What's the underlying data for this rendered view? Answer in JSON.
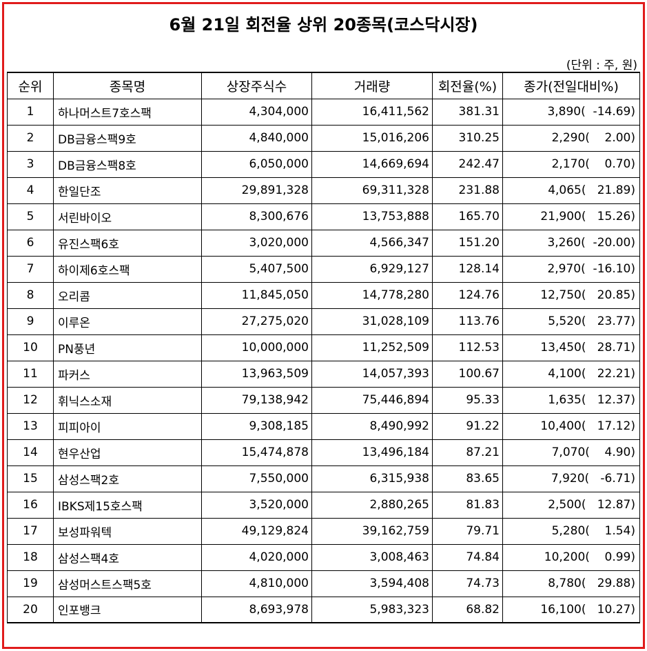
{
  "title": "6월 21일 회전율 상위 20종목(코스닥시장)",
  "unit_note": "(단위 : 주, 원)",
  "colors": {
    "frame": "#e01b1b"
  },
  "columns": [
    "순위",
    "종목명",
    "상장주식수",
    "거래량",
    "회전율(%)",
    "종가(전일대비%)"
  ],
  "rows": [
    {
      "rank": "1",
      "name": "하나머스트7호스팩",
      "listed": "4,304,000",
      "volume": "16,411,562",
      "turnover": "381.31",
      "close": "3,890(  -14.69)"
    },
    {
      "rank": "2",
      "name": "DB금융스팩9호",
      "listed": "4,840,000",
      "volume": "15,016,206",
      "turnover": "310.25",
      "close": "2,290(    2.00)"
    },
    {
      "rank": "3",
      "name": "DB금융스팩8호",
      "listed": "6,050,000",
      "volume": "14,669,694",
      "turnover": "242.47",
      "close": "2,170(    0.70)"
    },
    {
      "rank": "4",
      "name": "한일단조",
      "listed": "29,891,328",
      "volume": "69,311,328",
      "turnover": "231.88",
      "close": "4,065(   21.89)"
    },
    {
      "rank": "5",
      "name": "서린바이오",
      "listed": "8,300,676",
      "volume": "13,753,888",
      "turnover": "165.70",
      "close": "21,900(   15.26)"
    },
    {
      "rank": "6",
      "name": "유진스팩6호",
      "listed": "3,020,000",
      "volume": "4,566,347",
      "turnover": "151.20",
      "close": "3,260(  -20.00)"
    },
    {
      "rank": "7",
      "name": "하이제6호스팩",
      "listed": "5,407,500",
      "volume": "6,929,127",
      "turnover": "128.14",
      "close": "2,970(  -16.10)"
    },
    {
      "rank": "8",
      "name": "오리콤",
      "listed": "11,845,050",
      "volume": "14,778,280",
      "turnover": "124.76",
      "close": "12,750(   20.85)"
    },
    {
      "rank": "9",
      "name": "이루온",
      "listed": "27,275,020",
      "volume": "31,028,109",
      "turnover": "113.76",
      "close": "5,520(   23.77)"
    },
    {
      "rank": "10",
      "name": "PN풍년",
      "listed": "10,000,000",
      "volume": "11,252,509",
      "turnover": "112.53",
      "close": "13,450(   28.71)"
    },
    {
      "rank": "11",
      "name": "파커스",
      "listed": "13,963,509",
      "volume": "14,057,393",
      "turnover": "100.67",
      "close": "4,100(   22.21)"
    },
    {
      "rank": "12",
      "name": "휘닉스소재",
      "listed": "79,138,942",
      "volume": "75,446,894",
      "turnover": "95.33",
      "close": "1,635(   12.37)"
    },
    {
      "rank": "13",
      "name": "피피아이",
      "listed": "9,308,185",
      "volume": "8,490,992",
      "turnover": "91.22",
      "close": "10,400(   17.12)"
    },
    {
      "rank": "14",
      "name": "현우산업",
      "listed": "15,474,878",
      "volume": "13,496,184",
      "turnover": "87.21",
      "close": "7,070(    4.90)"
    },
    {
      "rank": "15",
      "name": "삼성스팩2호",
      "listed": "7,550,000",
      "volume": "6,315,938",
      "turnover": "83.65",
      "close": "7,920(   -6.71)"
    },
    {
      "rank": "16",
      "name": "IBKS제15호스팩",
      "listed": "3,520,000",
      "volume": "2,880,265",
      "turnover": "81.83",
      "close": "2,500(   12.87)"
    },
    {
      "rank": "17",
      "name": "보성파워텍",
      "listed": "49,129,824",
      "volume": "39,162,759",
      "turnover": "79.71",
      "close": "5,280(    1.54)"
    },
    {
      "rank": "18",
      "name": "삼성스팩4호",
      "listed": "4,020,000",
      "volume": "3,008,463",
      "turnover": "74.84",
      "close": "10,200(    0.99)"
    },
    {
      "rank": "19",
      "name": "삼성머스트스팩5호",
      "listed": "4,810,000",
      "volume": "3,594,408",
      "turnover": "74.73",
      "close": "8,780(   29.88)"
    },
    {
      "rank": "20",
      "name": "인포뱅크",
      "listed": "8,693,978",
      "volume": "5,983,323",
      "turnover": "68.82",
      "close": "16,100(   10.27)"
    }
  ]
}
